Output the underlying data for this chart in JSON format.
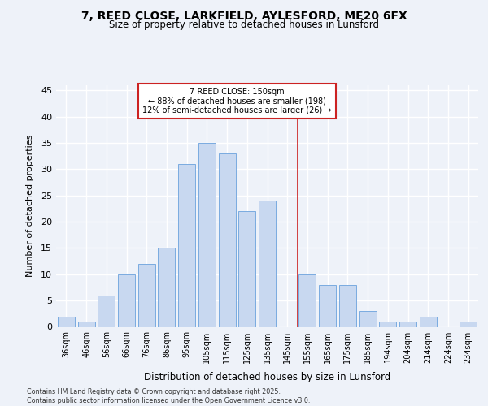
{
  "title1": "7, REED CLOSE, LARKFIELD, AYLESFORD, ME20 6FX",
  "title2": "Size of property relative to detached houses in Lunsford",
  "xlabel": "Distribution of detached houses by size in Lunsford",
  "ylabel": "Number of detached properties",
  "categories": [
    "36sqm",
    "46sqm",
    "56sqm",
    "66sqm",
    "76sqm",
    "86sqm",
    "95sqm",
    "105sqm",
    "115sqm",
    "125sqm",
    "135sqm",
    "145sqm",
    "155sqm",
    "165sqm",
    "175sqm",
    "185sqm",
    "194sqm",
    "204sqm",
    "214sqm",
    "224sqm",
    "234sqm"
  ],
  "values": [
    2,
    1,
    6,
    10,
    12,
    15,
    31,
    35,
    33,
    22,
    24,
    0,
    10,
    8,
    8,
    3,
    1,
    1,
    2,
    0,
    1
  ],
  "bar_color": "#c8d8f0",
  "bar_edge_color": "#7aabe0",
  "vline_color": "#cc2222",
  "annotation_title": "7 REED CLOSE: 150sqm",
  "annotation_line1": "← 88% of detached houses are smaller (198)",
  "annotation_line2": "12% of semi-detached houses are larger (26) →",
  "annotation_box_color": "#cc2222",
  "ylim": [
    0,
    46
  ],
  "yticks": [
    0,
    5,
    10,
    15,
    20,
    25,
    30,
    35,
    40,
    45
  ],
  "footer": "Contains HM Land Registry data © Crown copyright and database right 2025.\nContains public sector information licensed under the Open Government Licence v3.0.",
  "background_color": "#eef2f9",
  "grid_color": "#ffffff"
}
